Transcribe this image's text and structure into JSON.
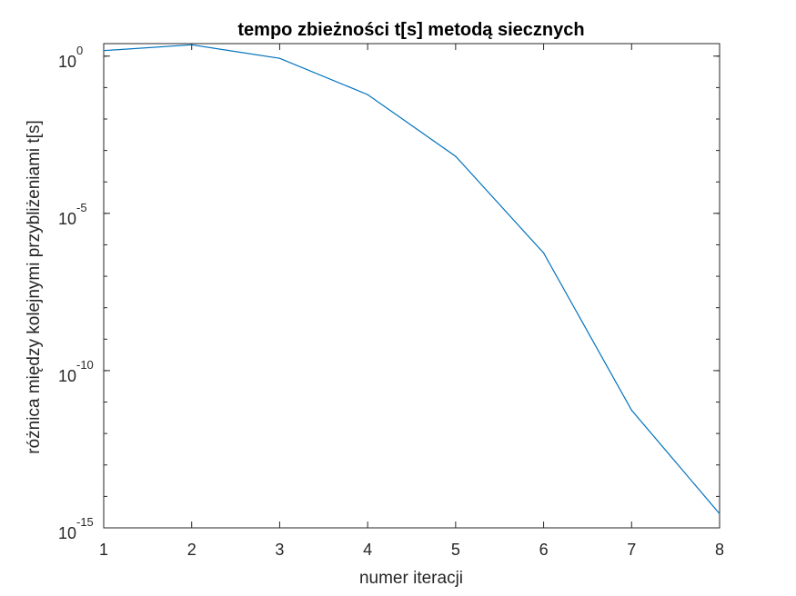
{
  "chart_data": {
    "type": "line",
    "title": "tempo zbieżności t[s] metodą siecznych",
    "xlabel": "numer iteracji",
    "ylabel": "różnica między kolejnymi przybliżeniami t[s]",
    "xlim": [
      1,
      8
    ],
    "ylim": [
      1e-15,
      2.5
    ],
    "yscale": "log",
    "grid": false,
    "line_color": "#0072BD",
    "xticks": [
      1,
      2,
      3,
      4,
      5,
      6,
      7,
      8
    ],
    "yticks": [
      1e-15,
      1e-10,
      1e-05,
      1
    ],
    "ytick_labels": [
      {
        "base": "10",
        "exp": "-15"
      },
      {
        "base": "10",
        "exp": "-10"
      },
      {
        "base": "10",
        "exp": "-5"
      },
      {
        "base": "10",
        "exp": "0"
      }
    ],
    "series": [
      {
        "x": [
          1,
          2,
          3,
          4,
          5,
          6,
          7,
          8
        ],
        "y": [
          1.5,
          2.3,
          0.85,
          0.06,
          0.00065,
          5.5e-07,
          5.5e-12,
          2.8e-15
        ]
      }
    ]
  }
}
